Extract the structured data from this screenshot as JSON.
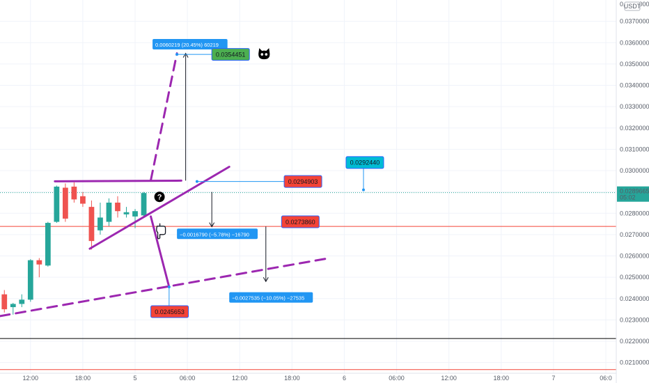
{
  "chart_data": {
    "type": "candlestick",
    "currency": "USDT",
    "y_scale_header": "0.0380000",
    "ylim": [
      0.0205,
      0.038
    ],
    "y_ticks": [
      "0.0370000",
      "0.0360000",
      "0.0350000",
      "0.0340000",
      "0.0330000",
      "0.0320000",
      "0.0310000",
      "0.0300000",
      "0.0290000",
      "0.0280000",
      "0.0270000",
      "0.0260000",
      "0.0250000",
      "0.0240000",
      "0.0230000",
      "0.0220000",
      "0.0210000"
    ],
    "x_ticks": [
      "12:00",
      "18:00",
      "5",
      "06:00",
      "12:00",
      "18:00",
      "6",
      "06:00",
      "12:00",
      "18:00",
      "7",
      "06:0"
    ],
    "x_tick_index": [
      3,
      9,
      15,
      21,
      27,
      33,
      39,
      45,
      51,
      57,
      63,
      69
    ],
    "index_range": [
      -0.5,
      70.2
    ],
    "current_price": {
      "value": 0.0289665,
      "label": "0.0289665",
      "countdown": "05:02",
      "color": "#26a69a"
    },
    "candles": [
      {
        "i": 0,
        "o": 0.0242,
        "h": 0.0244,
        "l": 0.02335,
        "c": 0.0235
      },
      {
        "i": 1,
        "o": 0.0236,
        "h": 0.0238,
        "l": 0.02325,
        "c": 0.02375
      },
      {
        "i": 2,
        "o": 0.02375,
        "h": 0.0242,
        "l": 0.0236,
        "c": 0.02395
      },
      {
        "i": 3,
        "o": 0.02395,
        "h": 0.02585,
        "l": 0.02385,
        "c": 0.0258
      },
      {
        "i": 4,
        "o": 0.0258,
        "h": 0.0259,
        "l": 0.025,
        "c": 0.0256
      },
      {
        "i": 5,
        "o": 0.02555,
        "h": 0.0276,
        "l": 0.0255,
        "c": 0.02755
      },
      {
        "i": 6,
        "o": 0.0276,
        "h": 0.0293,
        "l": 0.02755,
        "c": 0.02925
      },
      {
        "i": 7,
        "o": 0.0292,
        "h": 0.0294,
        "l": 0.0276,
        "c": 0.02775
      },
      {
        "i": 8,
        "o": 0.02925,
        "h": 0.02945,
        "l": 0.0285,
        "c": 0.02865
      },
      {
        "i": 9,
        "o": 0.0288,
        "h": 0.029,
        "l": 0.0283,
        "c": 0.02845
      },
      {
        "i": 10,
        "o": 0.0283,
        "h": 0.0286,
        "l": 0.0263,
        "c": 0.0267
      },
      {
        "i": 11,
        "o": 0.0272,
        "h": 0.0285,
        "l": 0.027,
        "c": 0.0278
      },
      {
        "i": 12,
        "o": 0.0276,
        "h": 0.0287,
        "l": 0.0274,
        "c": 0.0285
      },
      {
        "i": 13,
        "o": 0.0285,
        "h": 0.0288,
        "l": 0.0278,
        "c": 0.0281
      },
      {
        "i": 14,
        "o": 0.02795,
        "h": 0.0283,
        "l": 0.0278,
        "c": 0.02805
      },
      {
        "i": 15,
        "o": 0.02785,
        "h": 0.0282,
        "l": 0.0273,
        "c": 0.0281
      },
      {
        "i": 16,
        "o": 0.0279,
        "h": 0.029,
        "l": 0.0278,
        "c": 0.02895
      }
    ],
    "horizontal_lines": [
      {
        "price": 0.027386,
        "color": "#f44336"
      },
      {
        "price": 0.02213,
        "color": "#000000"
      },
      {
        "price": 0.02067,
        "color": "#f44336"
      }
    ],
    "trend_lines": [
      {
        "points": [
          [
            5.8,
            0.0295
          ],
          [
            20.3,
            0.02953
          ]
        ],
        "color": "#9c27b0",
        "style": "solid"
      },
      {
        "points": [
          [
            9.8,
            0.02634
          ],
          [
            25.8,
            0.03018
          ]
        ],
        "color": "#9c27b0",
        "style": "solid"
      },
      {
        "points": [
          [
            -0.5,
            0.02318
          ],
          [
            37.3,
            0.0259
          ]
        ],
        "color": "#9c27b0",
        "style": "dashed"
      },
      {
        "points": [
          [
            16.8,
            0.02785
          ],
          [
            18.9,
            0.02455
          ]
        ],
        "color": "#9c27b0",
        "style": "solid"
      },
      {
        "points": [
          [
            16.8,
            0.02955
          ],
          [
            19.8,
            0.0355
          ]
        ],
        "color": "#9c27b0",
        "style": "dashed"
      }
    ],
    "measure_arrows": [
      {
        "i": 20.8,
        "from": 0.02953,
        "to": 0.0355,
        "label": "0.0060219 (20.45%) 60219",
        "label_at": [
          17.0,
          0.03591
        ]
      },
      {
        "i": 23.8,
        "from": 0.029,
        "to": 0.02737,
        "label": "−0.0016790 (−5.78%) −16790",
        "label_at": [
          19.8,
          0.02702
        ]
      },
      {
        "i": 30.0,
        "from": 0.02738,
        "to": 0.0248,
        "label": "−0.0027535 (−10.05%) −27535",
        "label_at": [
          25.8,
          0.02404
        ]
      }
    ],
    "price_labels": [
      {
        "text": "0.0354451",
        "price": 0.03545,
        "i": 23.8,
        "color": "#4caf50",
        "anchor_i": 19.8
      },
      {
        "text": "0.0294903",
        "price": 0.02949,
        "i": 32.1,
        "color": "#f44336",
        "anchor_i": 22.1
      },
      {
        "text": "0.0273860",
        "price": 0.0276,
        "i": 31.8,
        "color": "#f44336",
        "anchor_i": 33.1,
        "anchor_price": 0.0274
      },
      {
        "text": "0.0292440",
        "price": 0.03038,
        "i": 39.2,
        "color": "#00bcd4",
        "anchor_i": 41.2,
        "anchor_price": 0.0291
      },
      {
        "text": "0.0245653",
        "price": 0.02339,
        "i": 16.8,
        "color": "#f44336",
        "anchor_i": 18.9,
        "anchor_price": 0.02455
      }
    ],
    "icons": [
      {
        "name": "cat-icon",
        "i": 29.8,
        "price": 0.03545
      },
      {
        "name": "question-icon",
        "i": 17.8,
        "price": 0.02877
      },
      {
        "name": "hand-icon",
        "i": 18.0,
        "price": 0.0272
      }
    ]
  }
}
